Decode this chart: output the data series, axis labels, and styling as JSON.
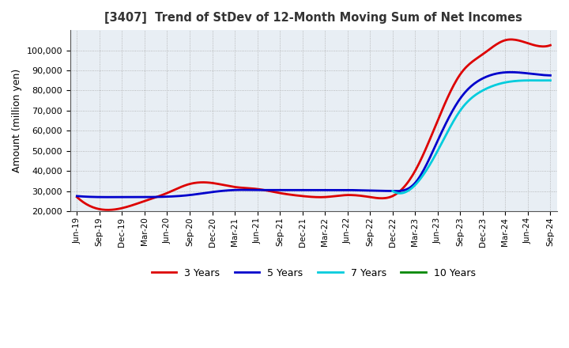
{
  "title": "[3407]  Trend of StDev of 12-Month Moving Sum of Net Incomes",
  "ylabel": "Amount (million yen)",
  "ylim": [
    20000,
    110000
  ],
  "yticks": [
    20000,
    30000,
    40000,
    50000,
    60000,
    70000,
    80000,
    90000,
    100000
  ],
  "background_color": "#e8eef4",
  "grid_color": "#aaaaaa",
  "legend": [
    "3 Years",
    "5 Years",
    "7 Years",
    "10 Years"
  ],
  "line_colors": [
    "#dd0000",
    "#0000cc",
    "#00ccdd",
    "#008800"
  ],
  "dates": [
    "Jun-19",
    "Sep-19",
    "Dec-19",
    "Mar-20",
    "Jun-20",
    "Sep-20",
    "Dec-20",
    "Mar-21",
    "Jun-21",
    "Sep-21",
    "Dec-21",
    "Mar-22",
    "Jun-22",
    "Sep-22",
    "Dec-22",
    "Mar-23",
    "Jun-23",
    "Sep-23",
    "Dec-23",
    "Mar-24",
    "Jun-24",
    "Sep-24"
  ],
  "series_3y": [
    27000,
    21000,
    21500,
    25000,
    29000,
    33500,
    34000,
    32000,
    31000,
    29000,
    27500,
    27000,
    28000,
    27000,
    27500,
    40000,
    65000,
    88000,
    98000,
    105000,
    103500,
    102500
  ],
  "series_5y": [
    27500,
    27000,
    27000,
    27000,
    27200,
    28000,
    29500,
    30500,
    30500,
    30500,
    30500,
    30500,
    30500,
    30200,
    30000,
    34000,
    55000,
    76000,
    86000,
    89000,
    88500,
    87500
  ],
  "series_7y": [
    null,
    null,
    null,
    null,
    null,
    null,
    null,
    null,
    null,
    null,
    null,
    null,
    null,
    null,
    30000,
    33000,
    50000,
    70000,
    80000,
    84000,
    85000,
    85000
  ],
  "series_10y": [
    null,
    null,
    null,
    null,
    null,
    null,
    null,
    null,
    null,
    null,
    null,
    null,
    null,
    null,
    null,
    null,
    null,
    null,
    null,
    null,
    null,
    null
  ]
}
